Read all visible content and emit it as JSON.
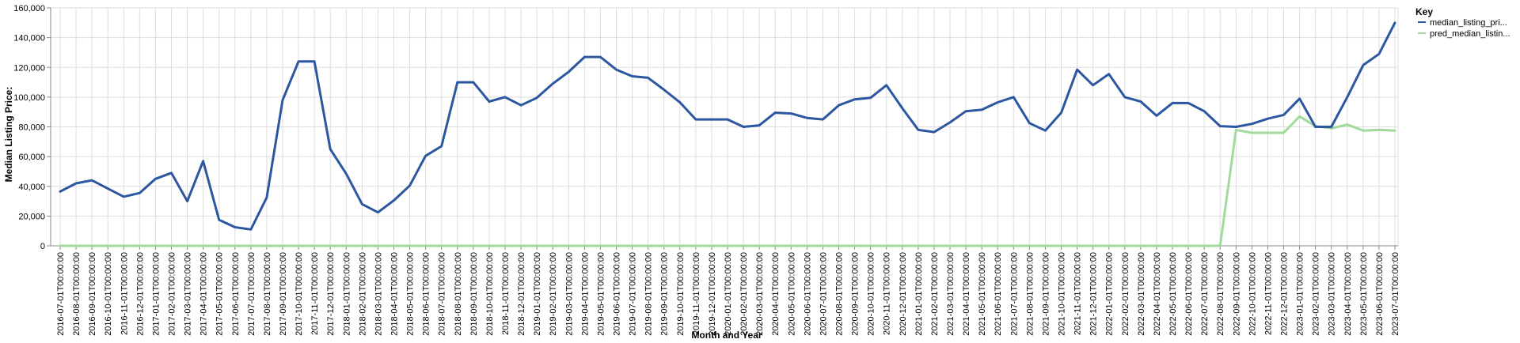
{
  "chart_data": {
    "type": "line",
    "title": "",
    "xlabel": "Month and Year",
    "ylabel": "Median Listing Price:",
    "ylim": [
      0,
      160000
    ],
    "yticks": [
      0,
      20000,
      40000,
      60000,
      80000,
      100000,
      120000,
      140000,
      160000
    ],
    "ytick_labels": [
      "0",
      "20,000",
      "40,000",
      "60,000",
      "80,000",
      "100,000",
      "120,000",
      "140,000",
      "160,000"
    ],
    "grid": true,
    "legend": {
      "title": "Key",
      "placement": "top-right"
    },
    "x": [
      "2016-07-01T00:00:00",
      "2016-08-01T00:00:00",
      "2016-09-01T00:00:00",
      "2016-10-01T00:00:00",
      "2016-11-01T00:00:00",
      "2016-12-01T00:00:00",
      "2017-01-01T00:00:00",
      "2017-02-01T00:00:00",
      "2017-03-01T00:00:00",
      "2017-04-01T00:00:00",
      "2017-05-01T00:00:00",
      "2017-06-01T00:00:00",
      "2017-07-01T00:00:00",
      "2017-08-01T00:00:00",
      "2017-09-01T00:00:00",
      "2017-10-01T00:00:00",
      "2017-11-01T00:00:00",
      "2017-12-01T00:00:00",
      "2018-01-01T00:00:00",
      "2018-02-01T00:00:00",
      "2018-03-01T00:00:00",
      "2018-04-01T00:00:00",
      "2018-05-01T00:00:00",
      "2018-06-01T00:00:00",
      "2018-07-01T00:00:00",
      "2018-08-01T00:00:00",
      "2018-09-01T00:00:00",
      "2018-10-01T00:00:00",
      "2018-11-01T00:00:00",
      "2018-12-01T00:00:00",
      "2019-01-01T00:00:00",
      "2019-02-01T00:00:00",
      "2019-03-01T00:00:00",
      "2019-04-01T00:00:00",
      "2019-05-01T00:00:00",
      "2019-06-01T00:00:00",
      "2019-07-01T00:00:00",
      "2019-08-01T00:00:00",
      "2019-09-01T00:00:00",
      "2019-10-01T00:00:00",
      "2019-11-01T00:00:00",
      "2019-12-01T00:00:00",
      "2020-01-01T00:00:00",
      "2020-02-01T00:00:00",
      "2020-03-01T00:00:00",
      "2020-04-01T00:00:00",
      "2020-05-01T00:00:00",
      "2020-06-01T00:00:00",
      "2020-07-01T00:00:00",
      "2020-08-01T00:00:00",
      "2020-09-01T00:00:00",
      "2020-10-01T00:00:00",
      "2020-11-01T00:00:00",
      "2020-12-01T00:00:00",
      "2021-01-01T00:00:00",
      "2021-02-01T00:00:00",
      "2021-03-01T00:00:00",
      "2021-04-01T00:00:00",
      "2021-05-01T00:00:00",
      "2021-06-01T00:00:00",
      "2021-07-01T00:00:00",
      "2021-08-01T00:00:00",
      "2021-09-01T00:00:00",
      "2021-10-01T00:00:00",
      "2021-11-01T00:00:00",
      "2021-12-01T00:00:00",
      "2022-01-01T00:00:00",
      "2022-02-01T00:00:00",
      "2022-03-01T00:00:00",
      "2022-04-01T00:00:00",
      "2022-05-01T00:00:00",
      "2022-06-01T00:00:00",
      "2022-07-01T00:00:00",
      "2022-08-01T00:00:00",
      "2022-09-01T00:00:00",
      "2022-10-01T00:00:00",
      "2022-11-01T00:00:00",
      "2022-12-01T00:00:00",
      "2023-01-01T00:00:00",
      "2023-02-01T00:00:00",
      "2023-03-01T00:00:00",
      "2023-04-01T00:00:00",
      "2023-05-01T00:00:00",
      "2023-06-01T00:00:00",
      "2023-07-01T00:00:00"
    ],
    "series": [
      {
        "name": "median_listing_pri...",
        "color": "#2b57a0",
        "values": [
          36500,
          42000,
          44000,
          38500,
          33000,
          35500,
          45000,
          49000,
          30000,
          57000,
          17500,
          12500,
          11000,
          32500,
          98000,
          124000,
          124000,
          65000,
          48500,
          28000,
          22500,
          30500,
          40500,
          60500,
          67000,
          110000,
          110000,
          97000,
          100000,
          94500,
          99500,
          109000,
          117000,
          127000,
          127000,
          118500,
          114000,
          113000,
          105000,
          96500,
          85000,
          85000,
          85000,
          80000,
          81000,
          89500,
          89000,
          86000,
          85000,
          94500,
          98500,
          99500,
          108000,
          92500,
          78000,
          76500,
          83000,
          90500,
          91500,
          96500,
          100000,
          82500,
          77500,
          89500,
          118500,
          108000,
          115500,
          100000,
          97000,
          87500,
          96000,
          96000,
          90500,
          80500,
          80000,
          82000,
          85500,
          88000,
          99000,
          80000,
          80000,
          100000,
          121500,
          129000,
          150000
        ]
      },
      {
        "name": "pred_median_listin...",
        "color": "#a2d99c",
        "values": [
          0,
          0,
          0,
          0,
          0,
          0,
          0,
          0,
          0,
          0,
          0,
          0,
          0,
          0,
          0,
          0,
          0,
          0,
          0,
          0,
          0,
          0,
          0,
          0,
          0,
          0,
          0,
          0,
          0,
          0,
          0,
          0,
          0,
          0,
          0,
          0,
          0,
          0,
          0,
          0,
          0,
          0,
          0,
          0,
          0,
          0,
          0,
          0,
          0,
          0,
          0,
          0,
          0,
          0,
          0,
          0,
          0,
          0,
          0,
          0,
          0,
          0,
          0,
          0,
          0,
          0,
          0,
          0,
          0,
          0,
          0,
          0,
          0,
          0,
          78000,
          76000,
          76000,
          76000,
          87000,
          80500,
          79000,
          81500,
          77500,
          78000,
          77500
        ]
      }
    ]
  }
}
